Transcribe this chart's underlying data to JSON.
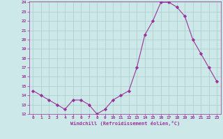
{
  "x": [
    0,
    1,
    2,
    3,
    4,
    5,
    6,
    7,
    8,
    9,
    10,
    11,
    12,
    13,
    14,
    15,
    16,
    17,
    18,
    19,
    20,
    21,
    22,
    23
  ],
  "y": [
    14.5,
    14.0,
    13.5,
    13.0,
    12.5,
    13.5,
    13.5,
    13.0,
    12.0,
    12.5,
    13.5,
    14.0,
    14.5,
    17.0,
    20.5,
    22.0,
    24.0,
    24.0,
    23.5,
    22.5,
    20.0,
    18.5,
    17.0,
    15.5
  ],
  "line_color": "#993399",
  "marker": "D",
  "marker_size": 2.2,
  "background_color": "#cce8e8",
  "grid_color": "#aacccc",
  "xlabel": "Windchill (Refroidissement éolien,°C)",
  "xlabel_color": "#993399",
  "tick_color": "#993399",
  "ylim": [
    12,
    24
  ],
  "xlim": [
    -0.5,
    23.5
  ],
  "yticks": [
    12,
    13,
    14,
    15,
    16,
    17,
    18,
    19,
    20,
    21,
    22,
    23,
    24
  ],
  "xticks": [
    0,
    1,
    2,
    3,
    4,
    5,
    6,
    7,
    8,
    9,
    10,
    11,
    12,
    13,
    14,
    15,
    16,
    17,
    18,
    19,
    20,
    21,
    22,
    23
  ]
}
